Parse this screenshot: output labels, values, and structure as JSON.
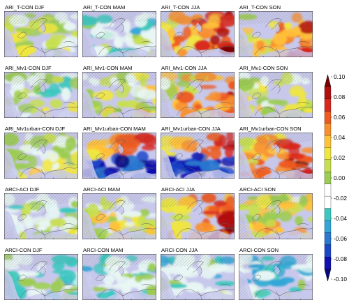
{
  "chart_data": {
    "type": "heatmap",
    "description_grid": "5 rows x 4 columns of map panels over Europe showing seasonal differences",
    "rows": [
      {
        "name": "ARI_T-CON",
        "panels": [
          {
            "title": "ARI_T-CON  DJF",
            "level": 0.0
          },
          {
            "title": "ARI_T-CON  MAM",
            "level": -0.02
          },
          {
            "title": "ARI_T-CON  JJA",
            "level": 0.04
          },
          {
            "title": "ARI_T-CON  SON",
            "level": 0.03
          }
        ]
      },
      {
        "name": "ARI_Mv1-CON",
        "panels": [
          {
            "title": "ARI_Mv1-CON  DJF",
            "level": -0.01
          },
          {
            "title": "ARI_Mv1-CON  MAM",
            "level": 0.01
          },
          {
            "title": "ARI_Mv1-CON  JJA",
            "level": 0.03
          },
          {
            "title": "ARI_Mv1-CON  SON",
            "level": 0.01
          }
        ]
      },
      {
        "name": "ARI_Mv1urban-CON",
        "panels": [
          {
            "title": "ARI_Mv1urban-CON  DJF",
            "level": 0.0
          },
          {
            "title": "ARI_Mv1urban-CON  MAM",
            "level": -0.02
          },
          {
            "title": "ARI_Mv1urban-CON  JJA",
            "level": -0.01
          },
          {
            "title": "ARI_Mv1urban-CON  SON",
            "level": 0.04
          }
        ]
      },
      {
        "name": "ARCI-ACI",
        "panels": [
          {
            "title": "ARCI-ACI  DJF",
            "level": -0.01
          },
          {
            "title": "ARCI-ACI  MAM",
            "level": 0.01
          },
          {
            "title": "ARCI-ACI  JJA",
            "level": 0.04
          },
          {
            "title": "ARCI-ACI  SON",
            "level": 0.02
          }
        ]
      },
      {
        "name": "ARCI-CON",
        "panels": [
          {
            "title": "ARCI-CON  DJF",
            "level": -0.02
          },
          {
            "title": "ARCI-CON  MAM",
            "level": -0.02
          },
          {
            "title": "ARCI-CON  JJA",
            "level": -0.02
          },
          {
            "title": "ARCI-CON  SON",
            "level": -0.03
          }
        ]
      }
    ],
    "colorbar": {
      "min": -0.1,
      "max": 0.1,
      "tick_labels": [
        "0.10",
        "0.08",
        "0.06",
        "0.04",
        "0.02",
        "0.00",
        "-0.02",
        "-0.04",
        "-0.06",
        "-0.08",
        "-0.10"
      ],
      "colors": [
        "#7a0000",
        "#b01010",
        "#d8281e",
        "#ee5a20",
        "#f89030",
        "#ffc23a",
        "#f0e640",
        "#c8e050",
        "#9ccc52",
        "#ffffff",
        "#ffffff",
        "#3cc8c0",
        "#32a6d8",
        "#2a78d0",
        "#1c48c8",
        "#1010b0",
        "#08087a"
      ],
      "extend": "both"
    },
    "palette_notes": {
      "ocean_lakes": "#c8c8ec",
      "land_neutral": "#9ccc52",
      "coastline": "#5a5a5a",
      "hatching": "#777777"
    }
  }
}
